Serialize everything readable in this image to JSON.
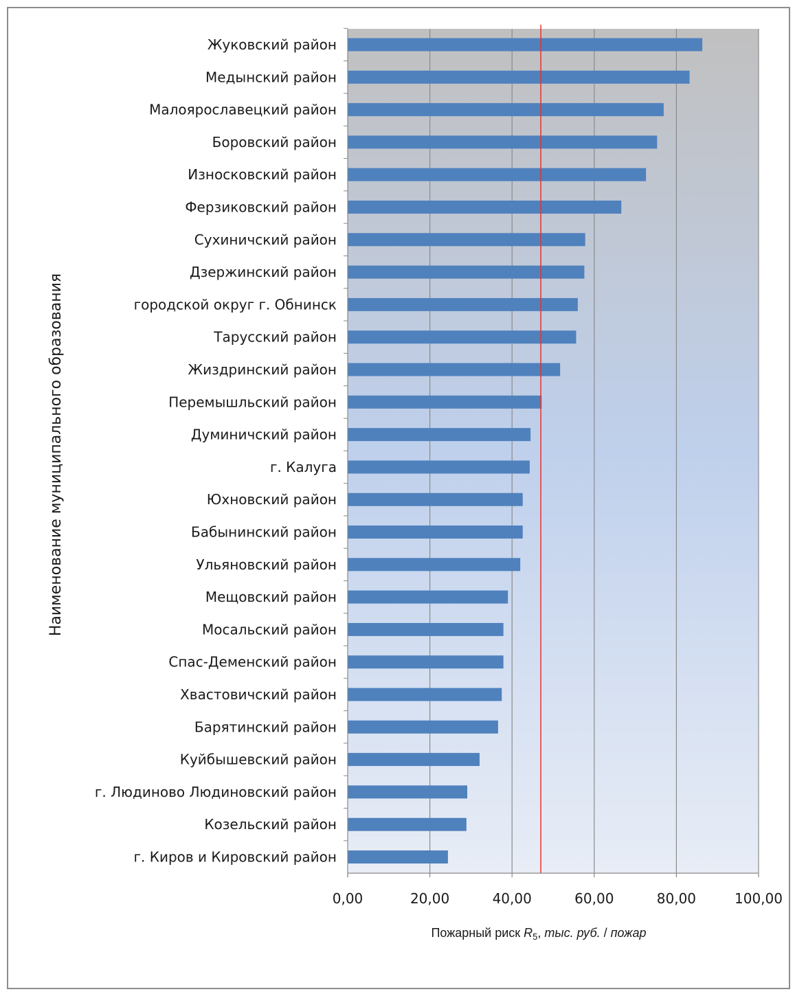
{
  "chart_data": {
    "type": "bar",
    "orientation": "horizontal",
    "categories": [
      "Жуковский район",
      "Медынский район",
      "Малоярославецкий район",
      "Боровский район",
      "Износковский район",
      "Ферзиковский район",
      "Сухиничский  район",
      "Дзержинский район",
      "городской округ г. Обнинск",
      "Тарусский  район",
      "Жиздринский район",
      "Перемышльский район",
      "Думиничский район",
      "г. Калуга",
      "Юхновский район",
      "Бабынинский район",
      "Ульяновский  район",
      "Мещовский район",
      "Мосальский район",
      "Спас-Деменский район",
      "Хвастовичский район",
      "Барятинский район",
      "Куйбышевский район",
      "г. Людиново Людиновский район",
      "Козельский район",
      "г. Киров и Кировский район"
    ],
    "values": [
      86.3,
      83.2,
      76.9,
      75.3,
      72.6,
      66.6,
      57.8,
      57.6,
      56.0,
      55.6,
      51.7,
      47.2,
      44.5,
      44.3,
      42.6,
      42.6,
      42.0,
      39.0,
      37.9,
      37.9,
      37.5,
      36.6,
      32.1,
      29.1,
      28.9,
      24.4
    ],
    "xlim": [
      0,
      100
    ],
    "xticks": [
      0,
      20,
      40,
      60,
      80,
      100
    ],
    "xtick_labels": [
      "0,00",
      "20,00",
      "40,00",
      "60,00",
      "80,00",
      "100,00"
    ],
    "reference_line": 47,
    "ylabel": "Наименование муниципального образования",
    "xlabel": {
      "prefix": "Пожарный риск ",
      "symbol": "R",
      "subscript": "5",
      "sep": ", ",
      "unit": "тыс. руб.",
      "slash": " / ",
      "per": "пожар"
    },
    "grid": "vertical",
    "colors": {
      "bar": "#4f81bd",
      "reference_line": "#e8312e",
      "grid": "#8a8a8a",
      "plot_bg_top": "#c0c0c0",
      "plot_bg_mid": "#bfd0ec",
      "plot_bg_bottom": "#e8edf6"
    }
  }
}
